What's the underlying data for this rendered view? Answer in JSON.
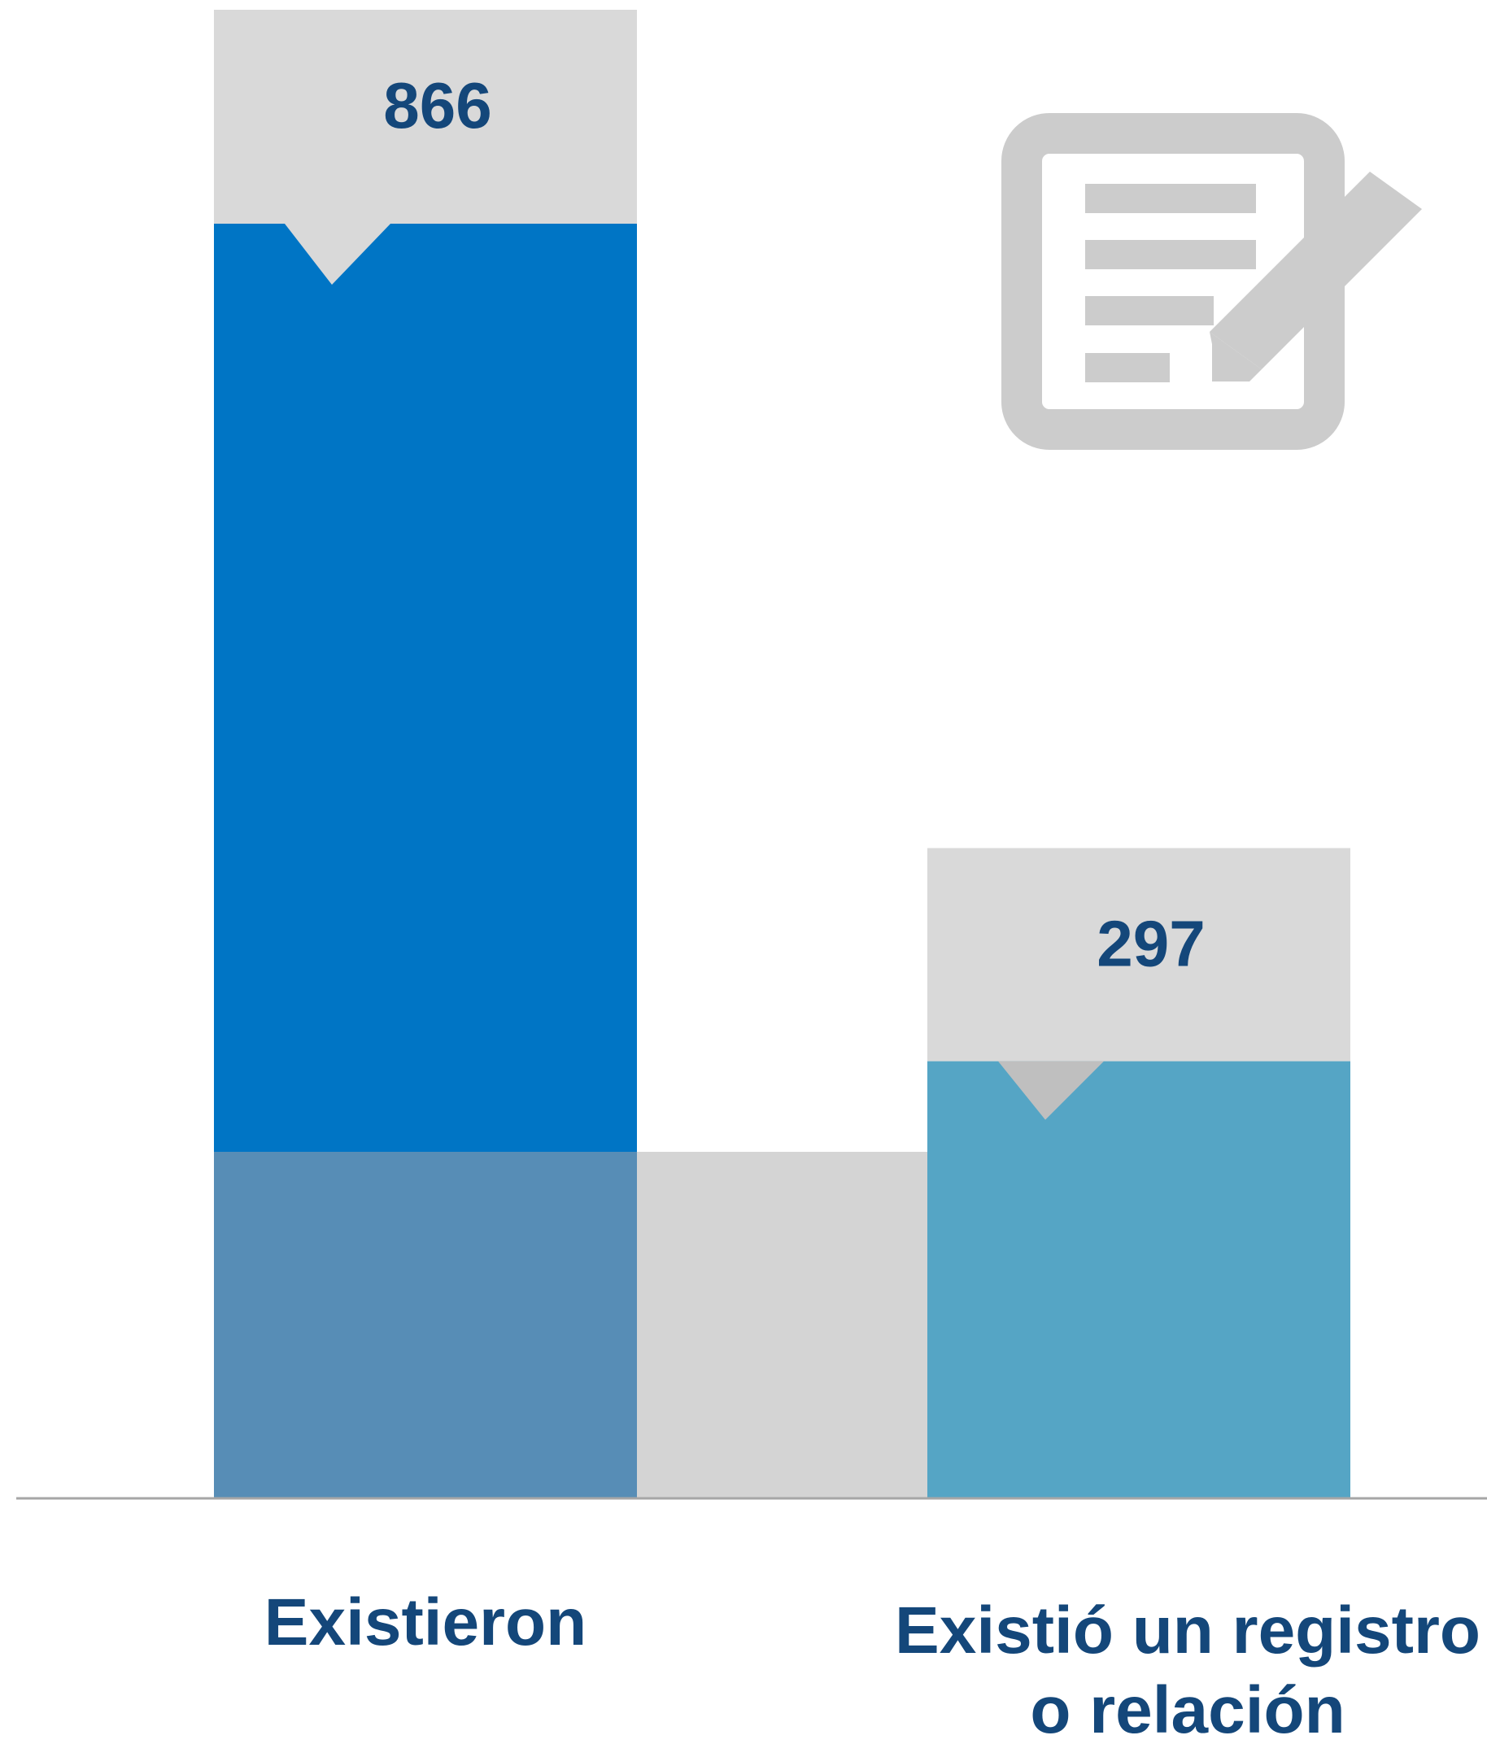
{
  "chart_data": {
    "type": "bar",
    "title": "",
    "xlabel": "",
    "ylabel": "",
    "categories": [
      {
        "lines": [
          "Existieron"
        ]
      },
      {
        "lines": [
          "Existió un registro",
          "o relación"
        ]
      }
    ],
    "values": [
      866,
      297
    ],
    "ylim": [
      0,
      866
    ],
    "grid": false,
    "legend": "none",
    "colors": {
      "bar_primary": "#0075C5",
      "bar_secondary": "#55A5C5",
      "bar_lower": "#578DB6",
      "band": "#D4D4D4",
      "callout": "#D9D9D9",
      "callout_pointer_2": "#BFBFBF",
      "label_text": "#14477A",
      "axis": "#A6A6A6",
      "icon": "#CCCCCC"
    },
    "icon": "document-edit-icon"
  }
}
